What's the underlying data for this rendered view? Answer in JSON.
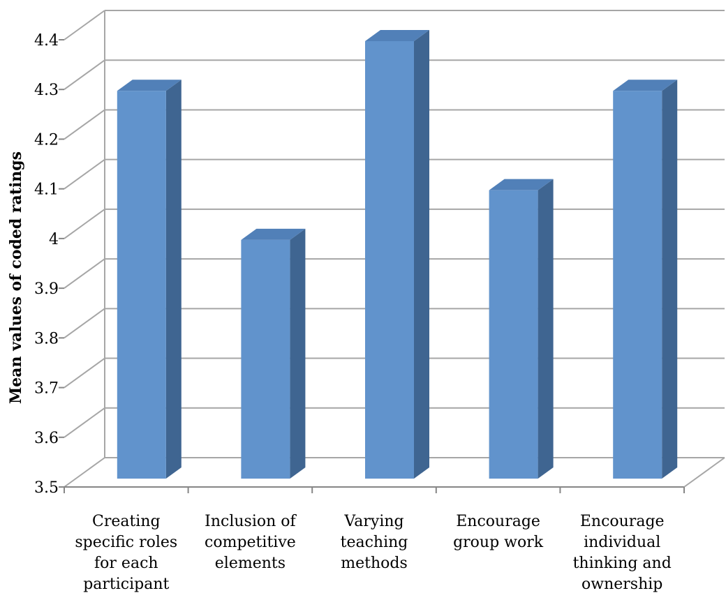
{
  "chart_data": {
    "type": "bar",
    "style": "3d-column",
    "title": "",
    "xlabel": "",
    "ylabel": "Mean values of coded ratings",
    "ylim": [
      3.5,
      4.4
    ],
    "yticks": [
      "3.5",
      "3.6",
      "3.7",
      "3.8",
      "3.9",
      "4",
      "4.1",
      "4.2",
      "4.3",
      "4.4"
    ],
    "grid": true,
    "legend": "none",
    "categories": [
      [
        "Creating",
        "specific roles",
        "for each",
        "participant"
      ],
      [
        "Inclusion of",
        "competitive",
        "elements"
      ],
      [
        "Varying",
        "teaching",
        "methods"
      ],
      [
        "Encourage",
        "group work"
      ],
      [
        "Encourage",
        "individual",
        "thinking and",
        "ownership"
      ]
    ],
    "values": [
      4.3,
      4.0,
      4.4,
      4.1,
      4.3
    ],
    "colors": {
      "bar_front": "#6193CC",
      "bar_side": "#3F6591",
      "bar_top": "#5180B8",
      "grid": "#A6A6A6",
      "axis": "#868686"
    }
  }
}
